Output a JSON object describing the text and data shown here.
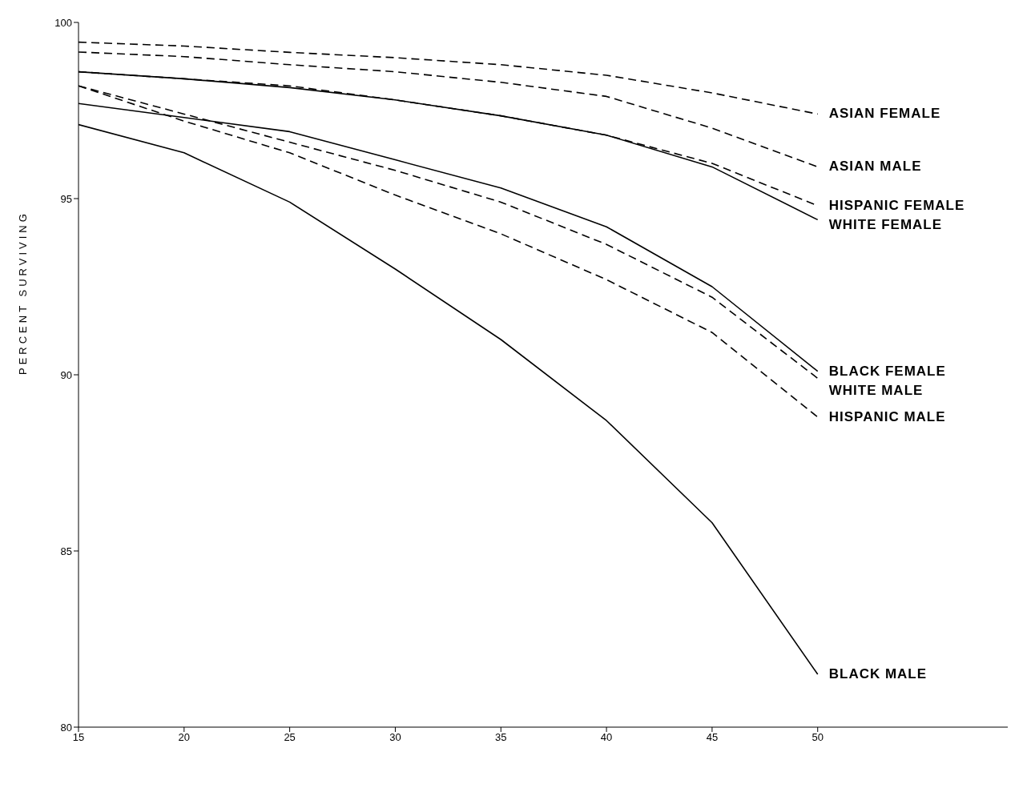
{
  "chart_data": {
    "type": "line",
    "ylabel": "PERCENT SURVIVING",
    "x": [
      15,
      20,
      25,
      30,
      35,
      40,
      45,
      50
    ],
    "xlim": [
      15,
      59
    ],
    "xticks": [
      15,
      20,
      25,
      30,
      35,
      40,
      45,
      50
    ],
    "ylim": [
      80,
      100
    ],
    "yticks": [
      80,
      85,
      90,
      95,
      100
    ],
    "legend": false,
    "marker": "none",
    "series": [
      {
        "name": "ASIAN FEMALE",
        "color": "#000000",
        "line_style": "dashed",
        "values": [
          99.44,
          99.33,
          99.15,
          99.0,
          98.8,
          98.5,
          98.0,
          97.4
        ]
      },
      {
        "name": "ASIAN MALE",
        "color": "#000000",
        "line_style": "dashed",
        "values": [
          99.16,
          99.03,
          98.8,
          98.6,
          98.3,
          97.9,
          97.0,
          95.9
        ]
      },
      {
        "name": "HISPANIC FEMALE",
        "color": "#000000",
        "line_style": "dashed",
        "values": [
          98.6,
          98.4,
          98.2,
          97.8,
          97.35,
          96.8,
          96.0,
          94.8
        ]
      },
      {
        "name": "WHITE FEMALE",
        "color": "#000000",
        "line_style": "solid",
        "values": [
          98.6,
          98.4,
          98.15,
          97.8,
          97.35,
          96.8,
          95.9,
          94.4
        ]
      },
      {
        "name": "BLACK FEMALE",
        "color": "#000000",
        "line_style": "solid",
        "values": [
          97.7,
          97.3,
          96.9,
          96.1,
          95.3,
          94.2,
          92.5,
          90.1
        ]
      },
      {
        "name": "WHITE MALE",
        "color": "#000000",
        "line_style": "dashed",
        "values": [
          98.2,
          97.4,
          96.6,
          95.8,
          94.9,
          93.7,
          92.2,
          89.9
        ]
      },
      {
        "name": "HISPANIC MALE",
        "color": "#000000",
        "line_style": "dashed",
        "values": [
          98.2,
          97.2,
          96.3,
          95.1,
          94.0,
          92.7,
          91.2,
          88.8
        ]
      },
      {
        "name": "BLACK MALE",
        "color": "#000000",
        "line_style": "solid",
        "values": [
          97.1,
          96.3,
          94.9,
          93.0,
          91.0,
          88.7,
          85.8,
          81.5
        ]
      }
    ]
  }
}
